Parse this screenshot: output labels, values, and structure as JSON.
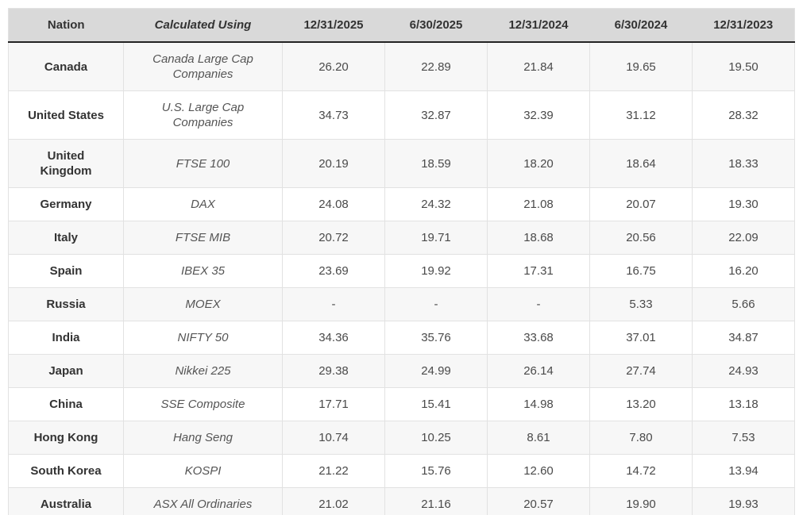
{
  "chart_data": {
    "type": "table",
    "columns": [
      "Nation",
      "Calculated Using",
      "12/31/2025",
      "6/30/2025",
      "12/31/2024",
      "6/30/2024",
      "12/31/2023"
    ],
    "rows": [
      {
        "nation": "Canada",
        "calculated_using": "Canada Large Cap Companies",
        "values": [
          "26.20",
          "22.89",
          "21.84",
          "19.65",
          "19.50"
        ]
      },
      {
        "nation": "United States",
        "calculated_using": "U.S. Large Cap Companies",
        "values": [
          "34.73",
          "32.87",
          "32.39",
          "31.12",
          "28.32"
        ]
      },
      {
        "nation": "United Kingdom",
        "calculated_using": "FTSE 100",
        "values": [
          "20.19",
          "18.59",
          "18.20",
          "18.64",
          "18.33"
        ]
      },
      {
        "nation": "Germany",
        "calculated_using": "DAX",
        "values": [
          "24.08",
          "24.32",
          "21.08",
          "20.07",
          "19.30"
        ]
      },
      {
        "nation": "Italy",
        "calculated_using": "FTSE MIB",
        "values": [
          "20.72",
          "19.71",
          "18.68",
          "20.56",
          "22.09"
        ]
      },
      {
        "nation": "Spain",
        "calculated_using": "IBEX 35",
        "values": [
          "23.69",
          "19.92",
          "17.31",
          "16.75",
          "16.20"
        ]
      },
      {
        "nation": "Russia",
        "calculated_using": "MOEX",
        "values": [
          "-",
          "-",
          "-",
          "5.33",
          "5.66"
        ]
      },
      {
        "nation": "India",
        "calculated_using": "NIFTY 50",
        "values": [
          "34.36",
          "35.76",
          "33.68",
          "37.01",
          "34.87"
        ]
      },
      {
        "nation": "Japan",
        "calculated_using": "Nikkei 225",
        "values": [
          "29.38",
          "24.99",
          "26.14",
          "27.74",
          "24.93"
        ]
      },
      {
        "nation": "China",
        "calculated_using": "SSE Composite",
        "values": [
          "17.71",
          "15.41",
          "14.98",
          "13.20",
          "13.18"
        ]
      },
      {
        "nation": "Hong Kong",
        "calculated_using": "Hang Seng",
        "values": [
          "10.74",
          "10.25",
          "8.61",
          "7.80",
          "7.53"
        ]
      },
      {
        "nation": "South Korea",
        "calculated_using": "KOSPI",
        "values": [
          "21.22",
          "15.76",
          "12.60",
          "14.72",
          "13.94"
        ]
      },
      {
        "nation": "Australia",
        "calculated_using": "ASX All Ordinaries",
        "values": [
          "21.02",
          "21.16",
          "20.57",
          "19.90",
          "19.93"
        ]
      }
    ],
    "layout": {
      "striped_rows": "odd",
      "grid": true,
      "header_heavy_bottom_border": true,
      "table_heavy_bottom_border": true
    },
    "colors": {
      "header_background": "#d9d9d9",
      "header_text": "#333333",
      "row_stripe": "#f7f7f7",
      "row_plain": "#ffffff",
      "cell_border": "#e2e2e2",
      "heavy_border": "#232323",
      "nation_text": "#333333",
      "index_text": "#555555",
      "value_text": "#4a4a4a"
    }
  }
}
